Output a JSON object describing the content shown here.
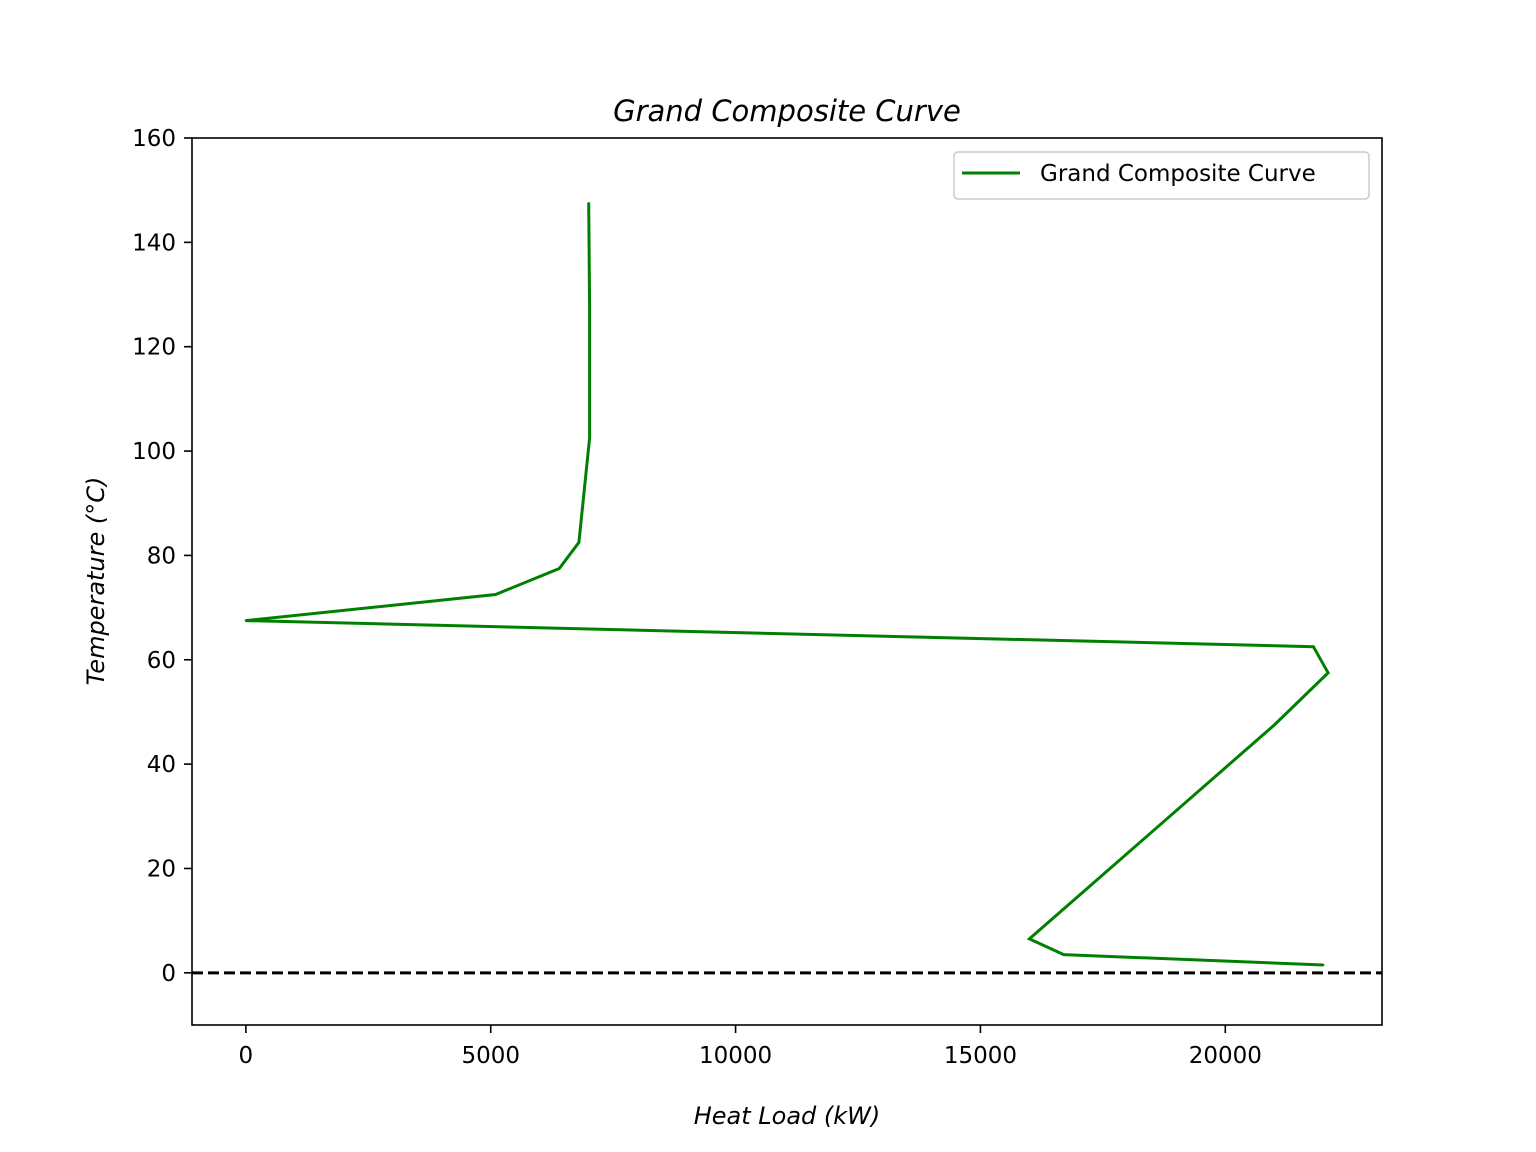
{
  "chart_data": {
    "type": "line",
    "title": "Grand Composite Curve",
    "xlabel": "Heat Load (kW)",
    "ylabel": "Temperature (°C)",
    "xlim": [
      -1100,
      23200
    ],
    "ylim": [
      -10,
      160
    ],
    "xticks": [
      0,
      5000,
      10000,
      15000,
      20000
    ],
    "yticks": [
      0,
      20,
      40,
      60,
      80,
      100,
      120,
      140,
      160
    ],
    "grid": false,
    "legend_position": "top-right",
    "series": [
      {
        "name": "Grand Composite Curve",
        "color": "#008000",
        "points": [
          {
            "x": 7000,
            "y": 147.5
          },
          {
            "x": 7020,
            "y": 127.5
          },
          {
            "x": 7020,
            "y": 102.5
          },
          {
            "x": 6800,
            "y": 82.5
          },
          {
            "x": 6400,
            "y": 77.5
          },
          {
            "x": 5100,
            "y": 72.5
          },
          {
            "x": 0,
            "y": 67.5
          },
          {
            "x": 21800,
            "y": 62.5
          },
          {
            "x": 22100,
            "y": 57.5
          },
          {
            "x": 21000,
            "y": 47.5
          },
          {
            "x": 16000,
            "y": 6.5
          },
          {
            "x": 16700,
            "y": 3.5
          },
          {
            "x": 22000,
            "y": 1.5
          }
        ]
      }
    ],
    "reference_lines": [
      {
        "orientation": "horizontal",
        "y": 0,
        "style": "dashed",
        "color": "#000000"
      }
    ]
  }
}
